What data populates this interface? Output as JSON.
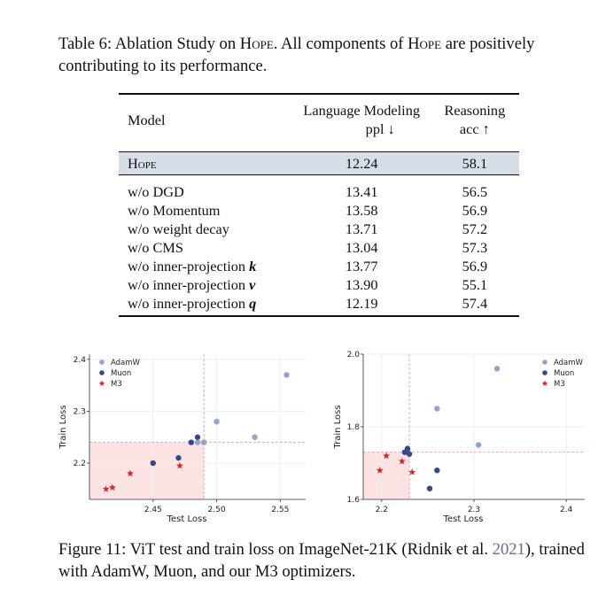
{
  "table_caption": {
    "prefix": "Table 6: Ablation Study on ",
    "name1": "Hope",
    "middle": ". All components of ",
    "name2": "Hope",
    "suffix": " are positively contributing to its performance."
  },
  "table": {
    "headers": {
      "model": "Model",
      "lm_line1": "Language Modeling",
      "lm_line2": "ppl ↓",
      "reason_line1": "Reasoning",
      "reason_line2": "acc ↑"
    },
    "highlight_row": {
      "model": "Hope",
      "ppl": "12.24",
      "acc": "58.1"
    },
    "rows": [
      {
        "model_text": "w/o DGD",
        "model_var": "",
        "ppl": "13.41",
        "acc": "56.5"
      },
      {
        "model_text": "w/o Momentum",
        "model_var": "",
        "ppl": "13.58",
        "acc": "56.9"
      },
      {
        "model_text": "w/o weight decay",
        "model_var": "",
        "ppl": "13.71",
        "acc": "57.2"
      },
      {
        "model_text": "w/o CMS",
        "model_var": "",
        "ppl": "13.04",
        "acc": "57.3"
      },
      {
        "model_text": "w/o inner-projection ",
        "model_var": "k",
        "ppl": "13.77",
        "acc": "56.9"
      },
      {
        "model_text": "w/o inner-projection ",
        "model_var": "v",
        "ppl": "13.90",
        "acc": "55.1"
      },
      {
        "model_text": "w/o inner-projection ",
        "model_var": "q",
        "ppl": "12.19",
        "acc": "57.4"
      }
    ]
  },
  "figure_caption": {
    "prefix": "Figure 11: ViT test and train loss on ImageNet-21K (Ridnik et al. ",
    "year": "2021",
    "suffix": "), trained with AdamW, Muon, and our M3 optimizers."
  },
  "colors": {
    "adamw": "#95a3cc",
    "muon": "#3c4786",
    "m3": "#d9232d",
    "highlight": "#fbe3e3",
    "dash": "#e8a0a0"
  },
  "chart_data": [
    {
      "type": "scatter",
      "title": "",
      "xlabel": "Test Loss",
      "ylabel": "Train Loss",
      "xlim": [
        2.4,
        2.57
      ],
      "ylim": [
        2.13,
        2.41
      ],
      "xticks": [
        {
          "v": 2.45,
          "label": "2.45"
        },
        {
          "v": 2.5,
          "label": "2.50"
        },
        {
          "v": 2.55,
          "label": "2.55"
        }
      ],
      "yticks": [
        {
          "v": 2.2,
          "label": "2.2"
        },
        {
          "v": 2.3,
          "label": "2.3"
        },
        {
          "v": 2.4,
          "label": "2.4"
        }
      ],
      "legend_position": "top-left",
      "highlight": {
        "x0": 2.4,
        "x1": 2.49,
        "y0": 2.13,
        "y1": 2.24,
        "vline": 2.49,
        "hline": 2.24
      },
      "series": [
        {
          "name": "AdamW",
          "key": "adamw",
          "marker": "circle",
          "points": [
            [
              2.485,
              2.24
            ],
            [
              2.49,
              2.24
            ],
            [
              2.5,
              2.28
            ],
            [
              2.53,
              2.25
            ],
            [
              2.555,
              2.37
            ]
          ]
        },
        {
          "name": "Muon",
          "key": "muon",
          "marker": "circle",
          "points": [
            [
              2.45,
              2.2
            ],
            [
              2.47,
              2.21
            ],
            [
              2.48,
              2.24
            ],
            [
              2.485,
              2.25
            ]
          ]
        },
        {
          "name": "M3",
          "key": "m3",
          "marker": "star",
          "points": [
            [
              2.413,
              2.15
            ],
            [
              2.418,
              2.153
            ],
            [
              2.432,
              2.18
            ],
            [
              2.471,
              2.195
            ]
          ]
        }
      ]
    },
    {
      "type": "scatter",
      "title": "",
      "xlabel": "Test Loss",
      "ylabel": "Train Loss",
      "xlim": [
        2.18,
        2.42
      ],
      "ylim": [
        1.6,
        2.0
      ],
      "xticks": [
        {
          "v": 2.2,
          "label": "2.2"
        },
        {
          "v": 2.3,
          "label": "2.3"
        },
        {
          "v": 2.4,
          "label": "2.4"
        }
      ],
      "yticks": [
        {
          "v": 1.6,
          "label": "1.6"
        },
        {
          "v": 1.8,
          "label": "1.8"
        },
        {
          "v": 2.0,
          "label": "2.0"
        }
      ],
      "legend_position": "top-right",
      "highlight": {
        "x0": 2.18,
        "x1": 2.23,
        "y0": 1.6,
        "y1": 1.73,
        "vline": 2.23,
        "hline": 1.73
      },
      "series": [
        {
          "name": "AdamW",
          "key": "adamw",
          "marker": "circle",
          "points": [
            [
              2.228,
              1.735
            ],
            [
              2.26,
              1.85
            ],
            [
              2.305,
              1.75
            ],
            [
              2.325,
              1.96
            ]
          ]
        },
        {
          "name": "Muon",
          "key": "muon",
          "marker": "circle",
          "points": [
            [
              2.225,
              1.73
            ],
            [
              2.228,
              1.74
            ],
            [
              2.23,
              1.725
            ],
            [
              2.26,
              1.68
            ],
            [
              2.252,
              1.63
            ]
          ]
        },
        {
          "name": "M3",
          "key": "m3",
          "marker": "star",
          "points": [
            [
              2.198,
              1.68
            ],
            [
              2.205,
              1.72
            ],
            [
              2.222,
              1.705
            ],
            [
              2.233,
              1.675
            ]
          ]
        }
      ]
    }
  ]
}
